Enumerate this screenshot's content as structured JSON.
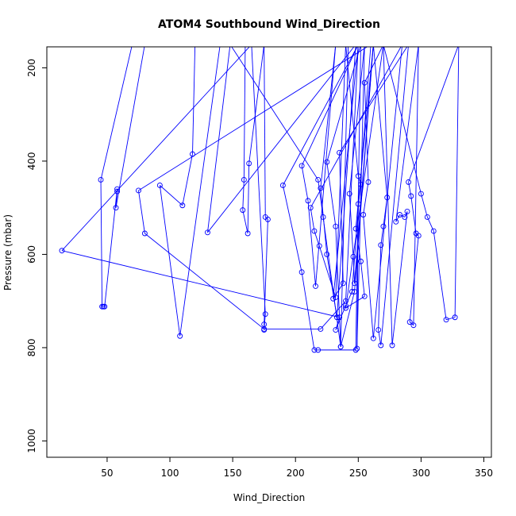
{
  "chart_data": {
    "type": "scatter",
    "mode": "points-and-lines",
    "title": "ATOM4 Southbound Wind_Direction",
    "xlabel": "Wind_Direction",
    "ylabel": "Pressure (mbar)",
    "xlim": [
      2,
      356
    ],
    "ylim": [
      1035,
      155
    ],
    "y_inverted": true,
    "xticks": [
      50,
      100,
      150,
      200,
      250,
      300,
      350
    ],
    "yticks": [
      200,
      400,
      600,
      800,
      1000
    ],
    "color": "#0000ff",
    "grid": false,
    "legend": "none",
    "series": [
      {
        "values": [
          [
            70,
            150
          ],
          [
            45,
            440
          ],
          [
            46,
            712
          ],
          [
            47,
            712
          ],
          [
            48,
            712
          ],
          [
            58,
            460
          ],
          [
            58,
            465
          ],
          [
            57,
            500
          ],
          [
            80,
            150
          ],
          [
            120,
            150
          ],
          [
            118,
            385
          ],
          [
            110,
            495
          ],
          [
            92,
            452
          ],
          [
            108,
            775
          ],
          [
            140,
            150
          ],
          [
            160,
            150
          ],
          [
            159,
            440
          ],
          [
            158,
            505
          ],
          [
            162,
            555
          ],
          [
            163,
            405
          ],
          [
            175,
            150
          ],
          [
            176,
            520
          ],
          [
            178,
            525
          ],
          [
            175,
            750
          ],
          [
            175,
            762
          ],
          [
            176,
            728
          ],
          [
            165,
            150
          ],
          [
            14,
            592
          ],
          [
            235,
            735
          ],
          [
            232,
            762
          ],
          [
            240,
            710
          ],
          [
            245,
            680
          ],
          [
            260,
            150
          ],
          [
            75,
            463
          ],
          [
            80,
            555
          ],
          [
            175,
            760
          ],
          [
            220,
            760
          ],
          [
            240,
            700
          ],
          [
            250,
            150
          ],
          [
            190,
            452
          ],
          [
            205,
            638
          ],
          [
            215,
            805
          ],
          [
            218,
            805
          ],
          [
            248,
            805
          ],
          [
            252,
            150
          ],
          [
            225,
            402
          ],
          [
            232,
            540
          ],
          [
            236,
            798
          ],
          [
            247,
            680
          ],
          [
            262,
            150
          ],
          [
            248,
            545
          ],
          [
            252,
            615
          ],
          [
            255,
            690
          ],
          [
            240,
            715
          ],
          [
            270,
            150
          ],
          [
            300,
            470
          ],
          [
            305,
            520
          ],
          [
            310,
            550
          ],
          [
            320,
            740
          ],
          [
            327,
            735
          ],
          [
            330,
            150
          ],
          [
            290,
            445
          ],
          [
            292,
            475
          ],
          [
            296,
            555
          ],
          [
            298,
            560
          ],
          [
            291,
            745
          ],
          [
            294,
            752
          ],
          [
            298,
            150
          ],
          [
            280,
            530
          ],
          [
            283,
            515
          ],
          [
            287,
            520
          ],
          [
            289,
            508
          ],
          [
            277,
            795
          ],
          [
            270,
            150
          ],
          [
            255,
            232
          ],
          [
            258,
            445
          ],
          [
            254,
            515
          ],
          [
            262,
            780
          ],
          [
            285,
            150
          ],
          [
            212,
            500
          ],
          [
            215,
            550
          ],
          [
            219,
            582
          ],
          [
            232,
            692
          ],
          [
            240,
            150
          ],
          [
            250,
            432
          ],
          [
            252,
            450
          ],
          [
            250,
            492
          ],
          [
            249,
            802
          ],
          [
            255,
            150
          ],
          [
            243,
            470
          ],
          [
            246,
            605
          ],
          [
            247,
            662
          ],
          [
            262,
            150
          ],
          [
            273,
            478
          ],
          [
            270,
            540
          ],
          [
            268,
            580
          ],
          [
            266,
            762
          ],
          [
            268,
            795
          ],
          [
            290,
            150
          ],
          [
            235,
            382
          ],
          [
            238,
            662
          ],
          [
            230,
            695
          ],
          [
            250,
            150
          ],
          [
            205,
            410
          ],
          [
            210,
            485
          ],
          [
            216,
            668
          ],
          [
            232,
            150
          ],
          [
            220,
            458
          ],
          [
            225,
            600
          ],
          [
            233,
            735
          ],
          [
            248,
            150
          ],
          [
            130,
            553
          ],
          [
            148,
            150
          ],
          [
            218,
            440
          ],
          [
            222,
            520
          ],
          [
            236,
            798
          ],
          [
            242,
            150
          ]
        ]
      }
    ]
  }
}
